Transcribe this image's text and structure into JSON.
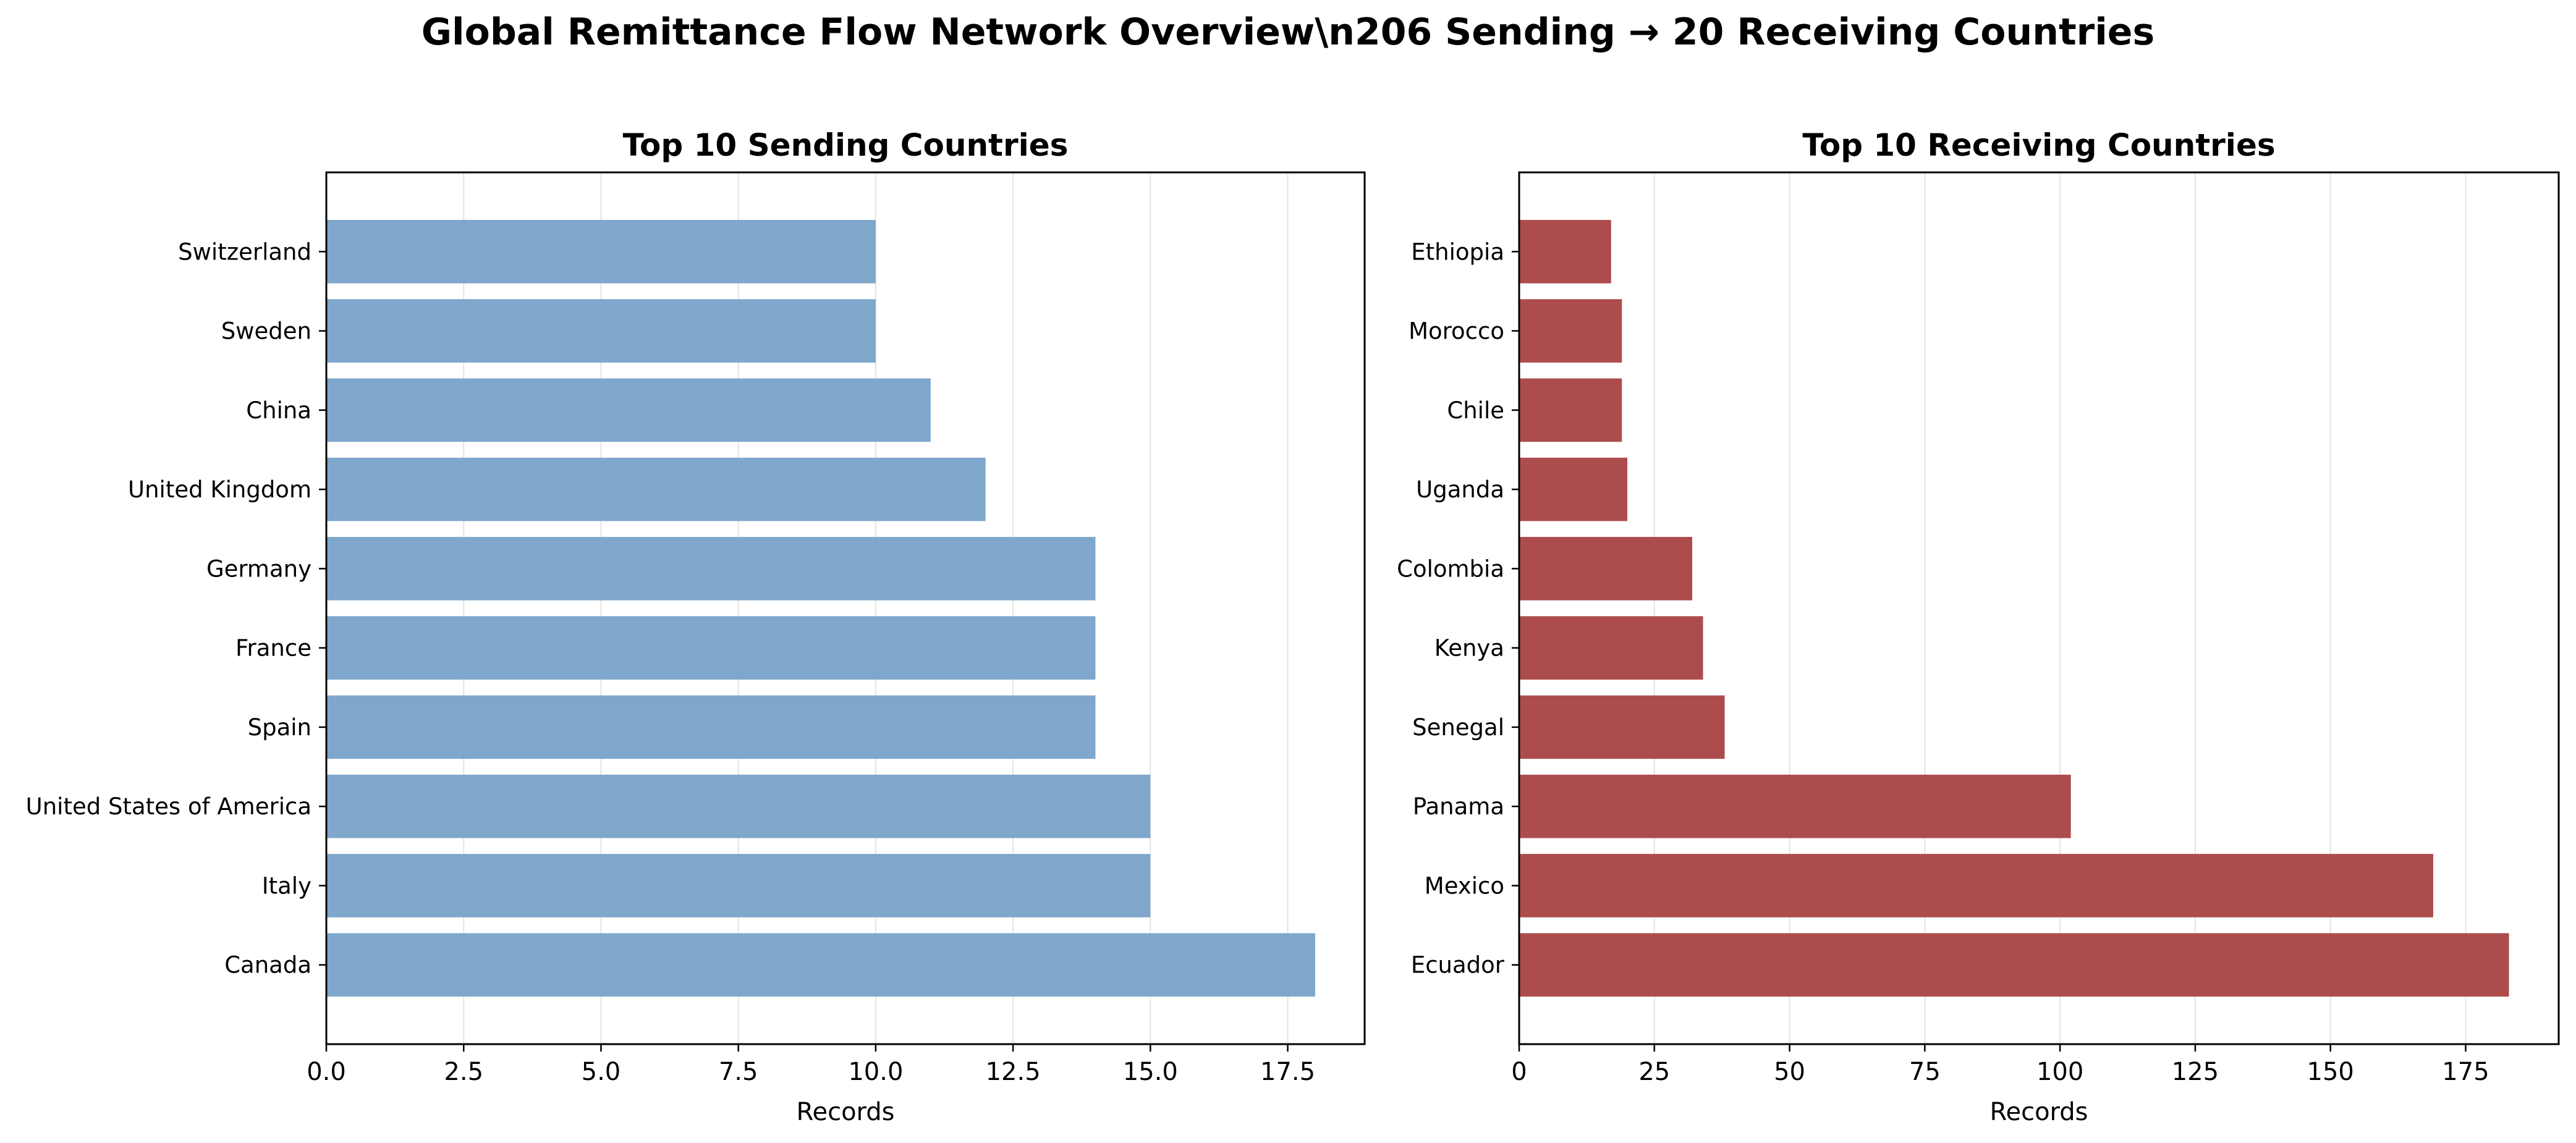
{
  "figure": {
    "title": "Global Remittance Flow Network Overview\\n206 Sending → 20 Receiving Countries"
  },
  "chart_data": [
    {
      "type": "bar",
      "orientation": "horizontal",
      "title": "Top 10 Sending Countries",
      "xlabel": "Records",
      "ylabel": "",
      "categories": [
        "Canada",
        "Italy",
        "United States of America",
        "Spain",
        "France",
        "Germany",
        "United Kingdom",
        "China",
        "Sweden",
        "Switzerland"
      ],
      "values": [
        18,
        15,
        15,
        14,
        14,
        14,
        12,
        11,
        10,
        10
      ],
      "xlim": [
        0,
        18.9
      ],
      "xticks": [
        0,
        2.5,
        5,
        7.5,
        10,
        12.5,
        15,
        17.5
      ],
      "xtick_labels": [
        "0.0",
        "2.5",
        "5.0",
        "7.5",
        "10.0",
        "12.5",
        "15.0",
        "17.5"
      ],
      "color": "#7ea7cb",
      "grid": "x"
    },
    {
      "type": "bar",
      "orientation": "horizontal",
      "title": "Top 10 Receiving Countries",
      "xlabel": "Records",
      "ylabel": "",
      "categories": [
        "Ecuador",
        "Mexico",
        "Panama",
        "Senegal",
        "Kenya",
        "Colombia",
        "Uganda",
        "Chile",
        "Morocco",
        "Ethiopia"
      ],
      "values": [
        183,
        169,
        102,
        38,
        34,
        32,
        20,
        19,
        19,
        17
      ],
      "xlim": [
        0,
        192.2
      ],
      "xticks": [
        0,
        25,
        50,
        75,
        100,
        125,
        150,
        175
      ],
      "xtick_labels": [
        "0",
        "25",
        "50",
        "75",
        "100",
        "125",
        "150",
        "175"
      ],
      "color": "#ad4c4d",
      "grid": "x"
    }
  ]
}
